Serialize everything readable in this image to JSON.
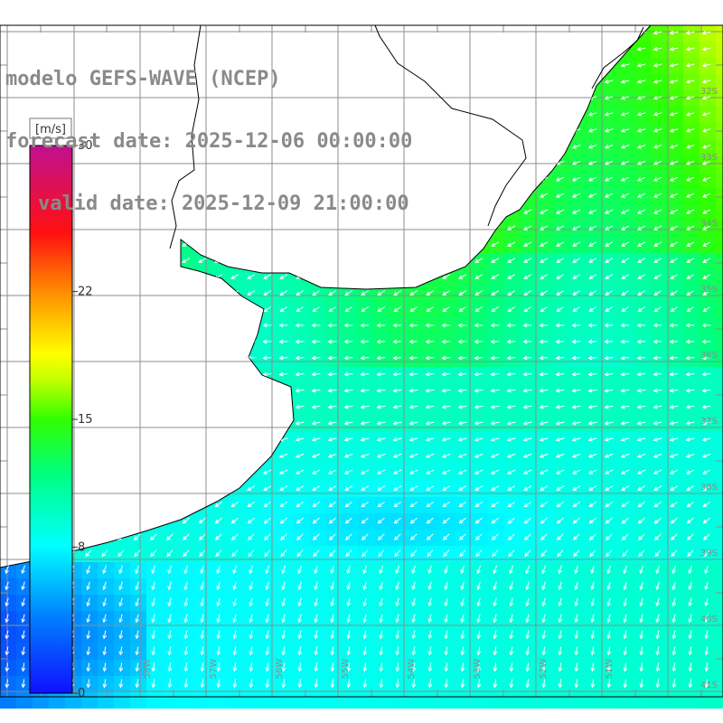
{
  "title": {
    "line1": "modelo GEFS-WAVE (NCEP)",
    "line2": "forecast date: 2025-12-06 00:00:00",
    "line3": "valid date: 2025-12-09 21:00:00"
  },
  "colorbar": {
    "unit": "[m/s]",
    "ticks": [
      "30",
      "22",
      "15",
      "8",
      "0"
    ],
    "tick_values": [
      30,
      22,
      15,
      8,
      0
    ],
    "range": [
      0,
      30
    ]
  },
  "lat_labels": [
    "32S",
    "33S",
    "34S",
    "35S",
    "36S",
    "37S",
    "38S",
    "39S",
    "40S",
    "41S"
  ],
  "lon_labels": [
    "58W",
    "57W",
    "56W",
    "55W",
    "54W",
    "53W",
    "52W",
    "51W"
  ],
  "colors": {
    "land": "#ffffff",
    "grid": "#8c8c8c",
    "coast": "#000000",
    "arrows": "#ffffff",
    "title": "#8a8a8a"
  }
}
